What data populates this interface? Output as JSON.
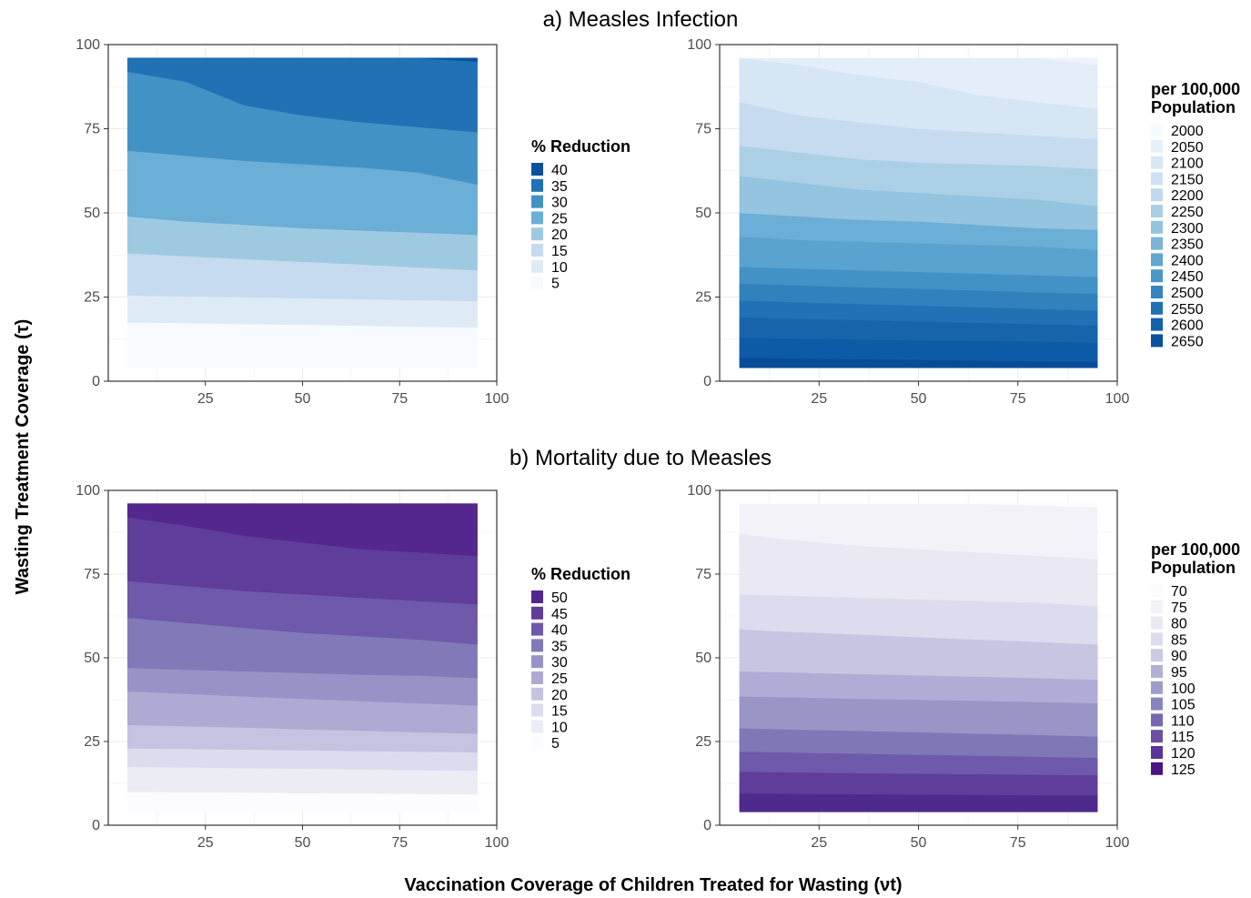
{
  "sections": [
    {
      "title": "a) Measles Infection"
    },
    {
      "title": "b) Mortality due to Measles"
    }
  ],
  "xlabel": "Vaccination Coverage of Children Treated for Wasting (νt)",
  "ylabel": "Wasting Treatment Coverage (τ)",
  "chart_data": [
    {
      "id": "infection-reduction",
      "type": "area",
      "xlim": [
        0,
        100
      ],
      "ylim": [
        0,
        100
      ],
      "x_ticks": [
        "25",
        "50",
        "75",
        "100"
      ],
      "y_ticks": [
        "0",
        "25",
        "50",
        "75",
        "100"
      ],
      "grid": true,
      "x": [
        5,
        20,
        35,
        50,
        65,
        80,
        95
      ],
      "band_edges": [
        [
          17.5,
          17.3,
          17.0,
          16.8,
          16.5,
          16.2,
          16.0
        ],
        [
          25.5,
          25.2,
          25.0,
          24.7,
          24.4,
          24.1,
          23.8
        ],
        [
          38.0,
          37.2,
          36.3,
          35.5,
          34.7,
          33.8,
          33.0
        ],
        [
          49.0,
          47.5,
          46.5,
          45.5,
          44.8,
          44.2,
          43.5
        ],
        [
          68.5,
          67.0,
          65.5,
          64.5,
          63.5,
          62.0,
          58.5
        ],
        [
          92.0,
          89.0,
          82.0,
          79.0,
          77.0,
          75.5,
          74.0
        ],
        [
          96.0,
          96.0,
          96.0,
          96.0,
          96.0,
          96.0,
          95.0
        ]
      ],
      "top": 96,
      "bottom": 4,
      "legend": {
        "title": "% Reduction",
        "placement": "right",
        "labels": [
          "40",
          "35",
          "30",
          "25",
          "20",
          "15",
          "10",
          "5"
        ],
        "colors": [
          "#08519c",
          "#2171b5",
          "#4292c6",
          "#6baed6",
          "#9ecae1",
          "#c6dbef",
          "#deebf7",
          "#f7fbff"
        ]
      }
    },
    {
      "id": "infection-per-100k",
      "type": "area",
      "xlim": [
        0,
        100
      ],
      "ylim": [
        0,
        100
      ],
      "x_ticks": [
        "25",
        "50",
        "75",
        "100"
      ],
      "y_ticks": [
        "0",
        "25",
        "50",
        "75",
        "100"
      ],
      "grid": true,
      "x": [
        5,
        20,
        35,
        50,
        65,
        80,
        95
      ],
      "band_edges": [
        [
          7.0,
          6.8,
          6.6,
          6.4,
          6.2,
          6.0,
          5.8
        ],
        [
          13.0,
          12.7,
          12.4,
          12.2,
          12.0,
          11.8,
          11.5
        ],
        [
          19.0,
          18.6,
          18.2,
          17.8,
          17.4,
          17.0,
          16.6
        ],
        [
          24.0,
          23.5,
          23.0,
          22.5,
          22.0,
          21.5,
          21.0
        ],
        [
          29.0,
          28.5,
          28.0,
          27.5,
          27.0,
          26.4,
          26.0
        ],
        [
          34.0,
          33.5,
          33.0,
          32.5,
          32.0,
          31.5,
          31.0
        ],
        [
          43.0,
          42.0,
          41.5,
          41.0,
          40.5,
          40.0,
          39.0
        ],
        [
          50.0,
          49.0,
          48.0,
          47.5,
          46.5,
          45.5,
          45.0
        ],
        [
          61.0,
          59.0,
          57.0,
          56.0,
          55.0,
          54.0,
          52.0
        ],
        [
          70.0,
          68.0,
          66.0,
          65.0,
          64.5,
          64.0,
          63.0
        ],
        [
          83.0,
          79.0,
          77.0,
          75.0,
          74.0,
          73.0,
          72.0
        ],
        [
          96.0,
          94.0,
          91.0,
          89.0,
          85.0,
          83.0,
          81.0
        ],
        [
          96.0,
          96.0,
          96.0,
          96.0,
          96.0,
          96.0,
          94.0
        ]
      ],
      "top": 96,
      "bottom": 4,
      "band_colors": [
        "#084b98",
        "#0c5ba6",
        "#1764ab",
        "#2171b5",
        "#3181bd",
        "#4292c6",
        "#5aa2cf",
        "#6baed6",
        "#94c4df",
        "#abd0e6",
        "#c6dbef",
        "#d6e6f4",
        "#e3eef9",
        "#edf4fb"
      ],
      "legend": {
        "title": "per 100,000\nPopulation",
        "placement": "right",
        "labels": [
          "2000",
          "2050",
          "2100",
          "2150",
          "2200",
          "2250",
          "2300",
          "2350",
          "2400",
          "2450",
          "2500",
          "2550",
          "2600",
          "2650"
        ],
        "colors": [
          "#f7fbff",
          "#e6f0fa",
          "#d8e7f5",
          "#cfe1f2",
          "#c1d9ed",
          "#aacfe5",
          "#94c4df",
          "#78b5d9",
          "#5fa6d1",
          "#4a98c9",
          "#3484bf",
          "#2171b5",
          "#1361a9",
          "#08519c"
        ]
      }
    },
    {
      "id": "mortality-reduction",
      "type": "area",
      "xlim": [
        0,
        100
      ],
      "ylim": [
        0,
        100
      ],
      "x_ticks": [
        "25",
        "50",
        "75",
        "100"
      ],
      "y_ticks": [
        "0",
        "25",
        "50",
        "75",
        "100"
      ],
      "grid": true,
      "x": [
        5,
        20,
        35,
        50,
        65,
        80,
        95
      ],
      "band_edges": [
        [
          10.0,
          9.9,
          9.8,
          9.6,
          9.5,
          9.4,
          9.3
        ],
        [
          17.5,
          17.3,
          17.1,
          16.9,
          16.7,
          16.5,
          16.3
        ],
        [
          23.0,
          22.8,
          22.6,
          22.4,
          22.2,
          22.0,
          21.8
        ],
        [
          30.0,
          29.6,
          29.2,
          28.7,
          28.3,
          27.8,
          27.4
        ],
        [
          40.0,
          39.3,
          38.5,
          37.8,
          37.1,
          36.4,
          35.8
        ],
        [
          47.0,
          46.5,
          46.0,
          45.5,
          45.0,
          44.7,
          44.0
        ],
        [
          62.0,
          60.5,
          59.0,
          57.5,
          56.5,
          55.5,
          54.0
        ],
        [
          73.0,
          71.5,
          70.0,
          69.0,
          68.0,
          67.0,
          66.0
        ],
        [
          92.0,
          89.5,
          86.5,
          84.5,
          82.5,
          81.5,
          80.5
        ],
        [
          96.0,
          96.0,
          96.0,
          96.0,
          96.0,
          96.0,
          96.0
        ]
      ],
      "top": 96,
      "bottom": 4,
      "legend": {
        "title": "% Reduction",
        "placement": "right",
        "labels": [
          "50",
          "45",
          "40",
          "35",
          "30",
          "25",
          "20",
          "15",
          "10",
          "5"
        ],
        "colors": [
          "#54278f",
          "#5f3d9a",
          "#6e59aa",
          "#8179b8",
          "#9893c7",
          "#aeaad4",
          "#c5c3e1",
          "#dcdcee",
          "#ececf5",
          "#fcfbfd"
        ]
      }
    },
    {
      "id": "mortality-per-100k",
      "type": "area",
      "xlim": [
        0,
        100
      ],
      "ylim": [
        0,
        100
      ],
      "x_ticks": [
        "25",
        "50",
        "75",
        "100"
      ],
      "y_ticks": [
        "0",
        "25",
        "50",
        "75",
        "100"
      ],
      "grid": true,
      "x": [
        5,
        20,
        35,
        50,
        65,
        80,
        95
      ],
      "band_edges": [
        [
          9.5,
          9.4,
          9.3,
          9.2,
          9.1,
          9.0,
          9.0
        ],
        [
          16.0,
          15.8,
          15.6,
          15.4,
          15.3,
          15.1,
          15.0
        ],
        [
          22.0,
          21.7,
          21.4,
          21.1,
          20.8,
          20.5,
          20.2
        ],
        [
          29.0,
          28.6,
          28.2,
          27.8,
          27.4,
          27.0,
          26.5
        ],
        [
          38.5,
          38.2,
          37.8,
          37.5,
          37.2,
          36.8,
          36.5
        ],
        [
          46.0,
          45.6,
          45.2,
          44.8,
          44.4,
          44.0,
          43.5
        ],
        [
          58.5,
          57.7,
          57.0,
          56.2,
          55.5,
          54.8,
          54.0
        ],
        [
          69.0,
          68.5,
          68.0,
          67.5,
          67.0,
          66.5,
          65.5
        ],
        [
          87.0,
          85.0,
          83.5,
          82.5,
          81.5,
          80.5,
          79.5
        ],
        [
          96.0,
          96.0,
          96.0,
          96.0,
          96.0,
          95.5,
          95.0
        ]
      ],
      "top": 96,
      "bottom": 4,
      "band_colors": [
        "#4d2a8c",
        "#5f3d9a",
        "#6e59aa",
        "#7f77b6",
        "#9995c6",
        "#b0acd5",
        "#c7c5e2",
        "#dcdcee",
        "#e9e8f3",
        "#f3f2f8",
        "#fcfbfd"
      ],
      "legend": {
        "title": "per 100,000\nPopulation",
        "placement": "right",
        "labels": [
          "70",
          "75",
          "80",
          "85",
          "90",
          "95",
          "100",
          "105",
          "110",
          "115",
          "120",
          "125"
        ],
        "colors": [
          "#fcfbfd",
          "#f3f2f8",
          "#e9e8f3",
          "#dcdcee",
          "#cbc9e3",
          "#b3b0d6",
          "#9f9bca",
          "#8a84be",
          "#7866b0",
          "#6a4fa3",
          "#5a3496",
          "#4a1486"
        ]
      }
    }
  ]
}
